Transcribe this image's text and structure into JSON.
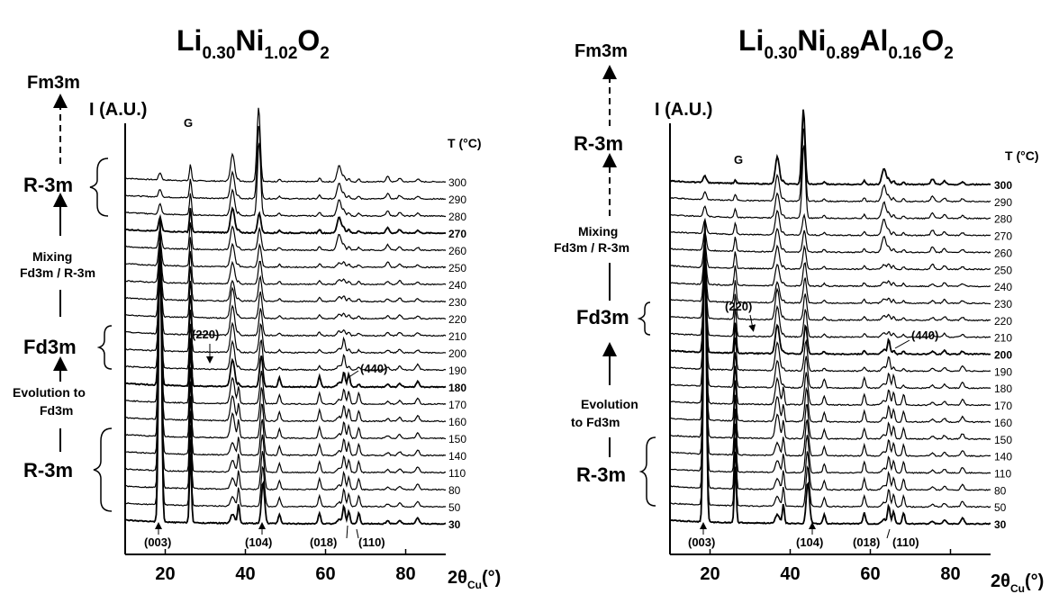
{
  "chart_data": [
    {
      "type": "line",
      "title": {
        "pre": "Li",
        "s1": "0.30",
        "mid": "Ni",
        "s2": "1.02",
        "post": "O",
        "s3": "2"
      },
      "ylabel": "I (A.U.)",
      "xlabel": {
        "main": "2θ",
        "sub": "Cu",
        "unit": "(°)"
      },
      "xticks": [
        20,
        40,
        60,
        80
      ],
      "xlim": [
        10,
        90
      ],
      "temp_header": "T (°C)",
      "temperatures": [
        "300",
        "290",
        "280",
        "270",
        "260",
        "250",
        "240",
        "230",
        "220",
        "210",
        "200",
        "190",
        "180",
        "170",
        "160",
        "150",
        "140",
        "110",
        "80",
        "50",
        "30"
      ],
      "bold_temperatures": [
        "270",
        "180",
        "30"
      ],
      "peaks": [
        {
          "label": "(003)",
          "x": 18.7
        },
        {
          "label": "(104)",
          "x": 44.4
        },
        {
          "label": "(018)",
          "x": 64.5
        },
        {
          "label": "(110)",
          "x": 67.5
        },
        {
          "label": "(220)",
          "x": 31.0
        },
        {
          "label": "(440)",
          "x": 65.2
        },
        {
          "label": "G",
          "x": 26.3
        }
      ],
      "phases": [
        "Fm3m",
        "R-3m",
        "Mixing",
        "Fd3m / R-3m",
        "Fd3m",
        "Evolution to",
        "Fd3m",
        "R-3m"
      ]
    },
    {
      "type": "line",
      "title": {
        "pre": "Li",
        "s1": "0.30",
        "mid": "Ni",
        "s2": "0.89",
        "mid2": "Al",
        "s3": "0.16",
        "post": "O",
        "s4": "2"
      },
      "ylabel": "I (A.U.)",
      "xlabel": {
        "main": "2θ",
        "sub": "Cu",
        "unit": "(°)"
      },
      "xticks": [
        20,
        40,
        60,
        80
      ],
      "xlim": [
        10,
        90
      ],
      "temp_header": "T (°C)",
      "temperatures": [
        "300",
        "290",
        "280",
        "270",
        "260",
        "250",
        "240",
        "230",
        "220",
        "210",
        "200",
        "190",
        "180",
        "170",
        "160",
        "150",
        "140",
        "110",
        "80",
        "50",
        "30"
      ],
      "bold_temperatures": [
        "300",
        "200",
        "30"
      ],
      "peaks": [
        {
          "label": "(003)",
          "x": 18.7
        },
        {
          "label": "(104)",
          "x": 44.4
        },
        {
          "label": "(018)",
          "x": 64.5
        },
        {
          "label": "(110)",
          "x": 67.5
        },
        {
          "label": "(220)",
          "x": 31.0
        },
        {
          "label": "(440)",
          "x": 65.2
        },
        {
          "label": "G",
          "x": 26.3
        }
      ],
      "phases": [
        "Fm3m",
        "R-3m",
        "Mixing",
        "Fd3m / R-3m",
        "Fd3m",
        "Evolution",
        "to Fd3m",
        "R-3m"
      ]
    }
  ]
}
